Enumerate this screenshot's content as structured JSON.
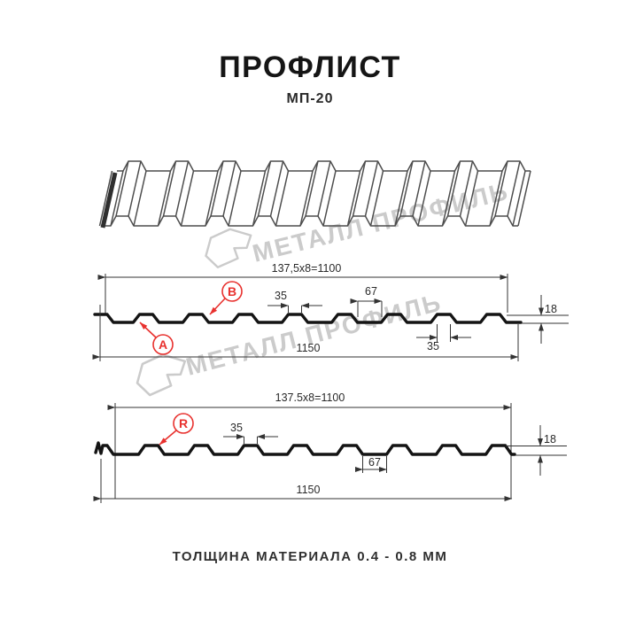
{
  "header": {
    "title": "ПРОФЛИСТ",
    "subtitle": "МП-20"
  },
  "watermark": {
    "text": "МЕТАЛЛ ПРОФИЛЬ"
  },
  "profile_top": {
    "width_formula": "137,5x8=1100",
    "rib_top_width": "35",
    "valley_width": "67",
    "rib_top_width_below": "35",
    "height": "18",
    "overall_width": "1150",
    "label_a": "А",
    "label_b": "В"
  },
  "profile_bottom": {
    "width_formula": "137.5x8=1100",
    "rib_top_width": "35",
    "valley_width": "67",
    "height": "18",
    "overall_width": "1150",
    "label_r": "R"
  },
  "footer": {
    "thickness_note": "ТОЛЩИНА МАТЕРИАЛА 0.4 - 0.8 ММ"
  },
  "colors": {
    "accent_red": "#e8312e",
    "line_dark": "#333333",
    "watermark_gray": "#cbcbcb"
  }
}
